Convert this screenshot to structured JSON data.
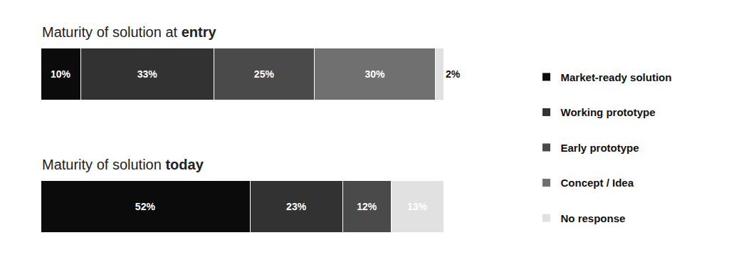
{
  "chart_data": {
    "type": "bar",
    "orientation": "horizontal",
    "stacked": true,
    "data_labels": true,
    "tick_labels": false,
    "grid": false,
    "legend": "right",
    "categories": [
      "Maturity of solution at entry",
      "Maturity of solution today"
    ],
    "xlim": [
      0,
      100
    ],
    "xticks": [
      0,
      100
    ],
    "series": [
      {
        "name": "Market-ready solution",
        "color": "#0b0b0b",
        "values": [
          10,
          52
        ],
        "value_labels": [
          "10%",
          "52%"
        ]
      },
      {
        "name": "Working prototype",
        "color": "#323232",
        "values": [
          33,
          23
        ],
        "value_labels": [
          "33%",
          "23%"
        ]
      },
      {
        "name": "Early prototype",
        "color": "#4a4a4a",
        "values": [
          25,
          12
        ],
        "value_labels": [
          "25%",
          "12%"
        ]
      },
      {
        "name": "Concept / Idea",
        "color": "#707070",
        "values": [
          30,
          null
        ],
        "value_labels": [
          "30%",
          null
        ]
      },
      {
        "name": "No response",
        "color": "#e1e1e1",
        "values": [
          2,
          13
        ],
        "value_labels": [
          "2%",
          "13%"
        ]
      }
    ]
  }
}
